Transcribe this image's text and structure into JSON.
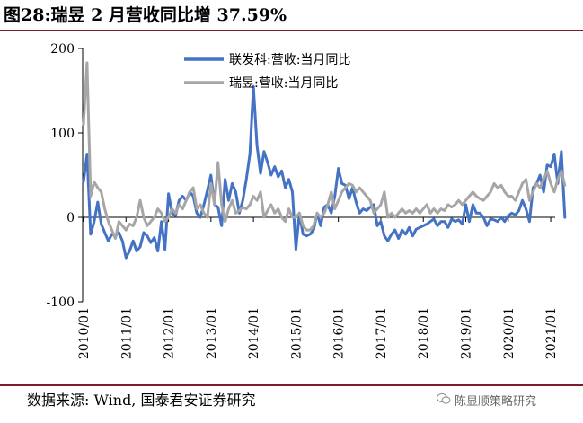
{
  "title": "图28:瑞昱 2 月营收同比增 37.59%",
  "source": "数据来源: Wind, 国泰君安证券研究",
  "watermark": "陈显顺策略研究",
  "chart_data": {
    "type": "line",
    "title": "图28:瑞昱 2 月营收同比增 37.59%",
    "xlabel": "",
    "ylabel": "",
    "ylim": [
      -100,
      200
    ],
    "yticks": [
      -100,
      0,
      100,
      200
    ],
    "ytick_labels": [
      "-100",
      "0",
      "100",
      "200"
    ],
    "xticks": [
      "2010/01",
      "2011/01",
      "2012/01",
      "2013/01",
      "2014/01",
      "2015/01",
      "2016/01",
      "2017/01",
      "2018/01",
      "2019/01",
      "2020/01",
      "2021/01"
    ],
    "x_start": "2010/01",
    "x_end": "2021/02",
    "grid": false,
    "legend_position": "top-center",
    "series": [
      {
        "name": "联发科:营收:当月同比",
        "color": "#4472c4",
        "values": [
          42,
          75,
          -20,
          -5,
          18,
          -8,
          -18,
          -28,
          -20,
          -22,
          -18,
          -28,
          -48,
          -40,
          -28,
          -40,
          -35,
          -18,
          -22,
          -30,
          -24,
          -40,
          -5,
          -38,
          28,
          5,
          2,
          20,
          25,
          20,
          30,
          25,
          5,
          0,
          15,
          32,
          50,
          15,
          12,
          -10,
          45,
          20,
          40,
          30,
          5,
          20,
          45,
          75,
          155,
          85,
          52,
          78,
          65,
          50,
          60,
          48,
          55,
          35,
          45,
          30,
          -38,
          5,
          -20,
          -22,
          -20,
          -15,
          5,
          -10,
          12,
          15,
          5,
          25,
          58,
          40,
          38,
          22,
          35,
          18,
          5,
          10,
          8,
          12,
          15,
          -10,
          -5,
          -22,
          -28,
          -20,
          -15,
          -25,
          -15,
          -20,
          -12,
          -22,
          -14,
          -12,
          -10,
          -8,
          -5,
          -2,
          -10,
          -5,
          -5,
          -12,
          -2,
          -5,
          -3,
          -8,
          15,
          -5,
          15,
          5,
          5,
          0,
          -10,
          -2,
          -3,
          -5,
          0,
          -5,
          2,
          5,
          3,
          8,
          20,
          10,
          -5,
          35,
          40,
          50,
          30,
          62,
          60,
          75,
          40,
          78,
          0
        ]
      },
      {
        "name": "瑞昱:营收:当月同比",
        "color": "#a6a6a6",
        "values": [
          110,
          183,
          25,
          42,
          35,
          30,
          10,
          -5,
          -15,
          -25,
          -5,
          -10,
          -15,
          -8,
          -10,
          0,
          20,
          0,
          -10,
          -5,
          0,
          10,
          5,
          -5,
          0,
          10,
          5,
          15,
          10,
          20,
          30,
          35,
          10,
          15,
          5,
          0,
          40,
          15,
          65,
          15,
          -5,
          10,
          20,
          5,
          8,
          12,
          10,
          15,
          25,
          20,
          30,
          0,
          8,
          15,
          5,
          10,
          0,
          -5,
          10,
          0,
          0,
          5,
          -10,
          -15,
          -15,
          -10,
          5,
          0,
          5,
          15,
          30,
          10,
          20,
          30,
          35,
          40,
          38,
          30,
          35,
          30,
          25,
          20,
          5,
          10,
          15,
          30,
          0,
          5,
          0,
          5,
          10,
          5,
          8,
          5,
          10,
          5,
          10,
          15,
          5,
          10,
          5,
          10,
          8,
          15,
          12,
          15,
          20,
          15,
          20,
          25,
          30,
          25,
          22,
          20,
          25,
          30,
          40,
          35,
          38,
          30,
          25,
          25,
          20,
          30,
          40,
          45,
          20,
          30,
          40,
          35,
          45,
          55,
          40,
          30,
          45,
          55,
          38
        ]
      }
    ]
  }
}
